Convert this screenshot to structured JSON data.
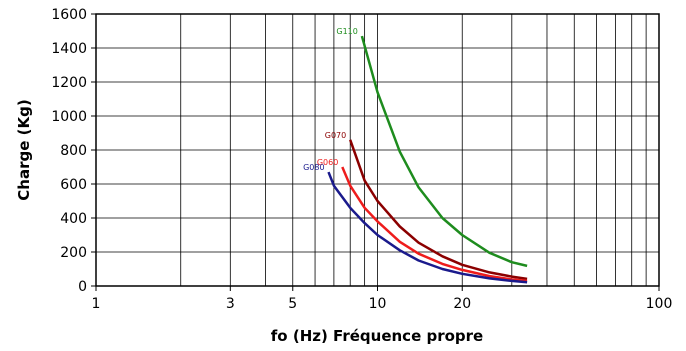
{
  "chart_data": {
    "type": "line",
    "xlabel": "fo (Hz) Fréquence propre",
    "ylabel": "Charge (Kg)",
    "x_scale": "log",
    "xlim": [
      1,
      100
    ],
    "ylim": [
      0,
      1600
    ],
    "x_ticks": [
      1,
      3,
      5,
      10,
      20,
      100
    ],
    "y_ticks": [
      0,
      200,
      400,
      600,
      800,
      1000,
      1200,
      1400,
      1600
    ],
    "grid": true,
    "series": [
      {
        "name": "G110",
        "color": "#1e8c1e",
        "points": [
          [
            8.8,
            1470
          ],
          [
            10,
            1140
          ],
          [
            12,
            790
          ],
          [
            14,
            580
          ],
          [
            17,
            400
          ],
          [
            20,
            300
          ],
          [
            25,
            195
          ],
          [
            30,
            140
          ],
          [
            34,
            118
          ]
        ]
      },
      {
        "name": "G070",
        "color": "#8b0000",
        "points": [
          [
            8,
            860
          ],
          [
            9,
            620
          ],
          [
            10,
            500
          ],
          [
            12,
            350
          ],
          [
            14,
            255
          ],
          [
            17,
            175
          ],
          [
            20,
            125
          ],
          [
            25,
            80
          ],
          [
            30,
            55
          ],
          [
            34,
            42
          ]
        ]
      },
      {
        "name": "G060",
        "color": "#ee1c1c",
        "points": [
          [
            7.5,
            700
          ],
          [
            8,
            590
          ],
          [
            9,
            460
          ],
          [
            10,
            380
          ],
          [
            12,
            260
          ],
          [
            14,
            190
          ],
          [
            17,
            130
          ],
          [
            20,
            95
          ],
          [
            25,
            58
          ],
          [
            30,
            38
          ],
          [
            34,
            30
          ]
        ]
      },
      {
        "name": "G080",
        "color": "#1a1a8c",
        "points": [
          [
            6.7,
            670
          ],
          [
            7,
            590
          ],
          [
            8,
            460
          ],
          [
            9,
            370
          ],
          [
            10,
            300
          ],
          [
            12,
            210
          ],
          [
            14,
            150
          ],
          [
            17,
            100
          ],
          [
            20,
            72
          ],
          [
            25,
            45
          ],
          [
            30,
            30
          ],
          [
            34,
            22
          ]
        ]
      }
    ]
  }
}
